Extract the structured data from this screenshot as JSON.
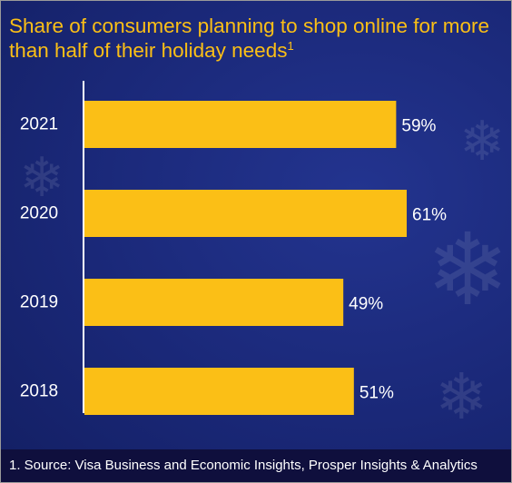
{
  "chart_data": {
    "type": "bar",
    "orientation": "horizontal",
    "title": "Share of consumers planning to shop online for more than half of their holiday needs",
    "title_footnote_marker": "1",
    "categories": [
      "2021",
      "2020",
      "2019",
      "2018"
    ],
    "values": [
      59,
      61,
      49,
      51
    ],
    "value_labels": [
      "59%",
      "61%",
      "49%",
      "51%"
    ],
    "value_unit": "%",
    "xlim": [
      0,
      100
    ],
    "grid": false,
    "legend": "none",
    "source_note": "1. Source: Visa Business and Economic Insights, Prosper Insights & Analytics"
  },
  "colors": {
    "background": "#1a2878",
    "bar": "#fbbf16",
    "title": "#fbbf16",
    "text": "#ffffff",
    "footer_background": "#0f0f3d"
  },
  "decoration": {
    "pattern": "snowflake-icon"
  }
}
